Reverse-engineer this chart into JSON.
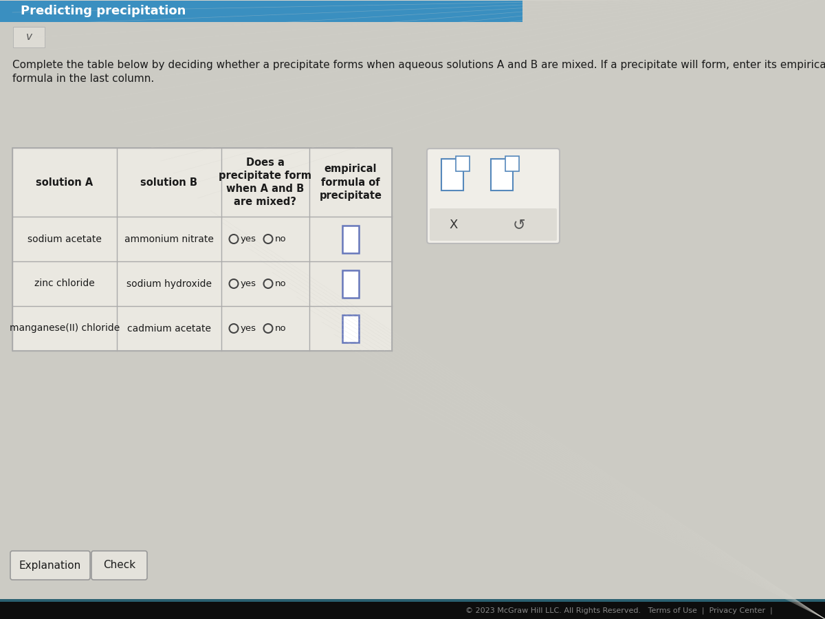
{
  "title": "Predicting precipitation",
  "instruction_line1": "Complete the table below by deciding whether a precipitate forms when aqueous solutions A and B are mixed. If a precipitate will form, enter its empirical",
  "instruction_line2": "formula in the last column.",
  "bg_color": "#cccbc4",
  "table_bg": "#eae8e1",
  "title_bar_color": "#3a8fc0",
  "title_bar_text_color": "#ffffff",
  "text_color": "#1a1a1a",
  "solution_A": [
    "sodium acetate",
    "zinc chloride",
    "manganese(II) chloride"
  ],
  "solution_B": [
    "ammonium nitrate",
    "sodium hydroxide",
    "cadmium acetate"
  ],
  "col_headers": [
    "solution A",
    "solution B",
    "Does a\nprecipitate form\nwhen A and B\nare mixed?",
    "empirical\nformula of\nprecipitate"
  ],
  "footer_text": "© 2023 McGraw Hill LLC. All Rights Reserved.   Terms of Use  |  Privacy Center  |",
  "button_explanation": "Explanation",
  "button_check": "Check",
  "popup_border_color": "#bbbbbb",
  "popup_bg": "#f0eee8",
  "popup_bottom_bg": "#dddbd4",
  "input_box_color": "#5588bb",
  "emp_box_color": "#6677bb",
  "radio_color": "#444444",
  "line_color": "#aaaaaa",
  "footer_bg": "#0d0d0d",
  "footer_text_color": "#888888"
}
